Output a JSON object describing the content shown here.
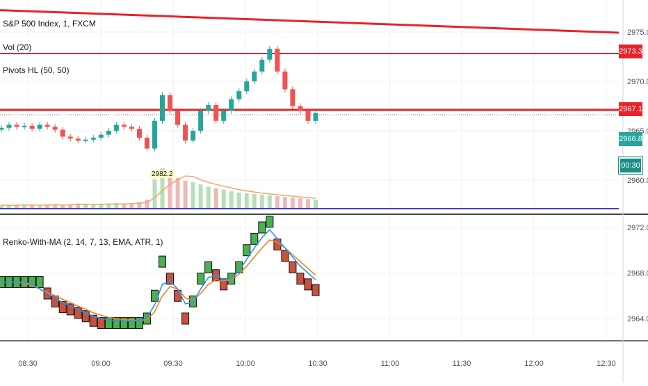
{
  "header": {
    "symbol_title": "S&P 500 Index, 1, FXCM",
    "volume_indicator": "Vol (20)",
    "pivots_indicator": "Pivots HL (50, 50)",
    "renko_indicator": "Renko-With-MA (2, 14, 7, 13, EMA, ATR, 1)",
    "volume_value_label": "2982.2"
  },
  "price_badges": {
    "pivot_high": "2973.3",
    "pivot_low": "2967.1",
    "last_price": "2966.8",
    "countdown": "00:30"
  },
  "colors": {
    "resistance": "#e8232a",
    "up": "#26a69a",
    "down": "#ef5350",
    "renko_up": "#4caf50",
    "renko_down": "#c8523f",
    "ema_fast": "#2196f3",
    "ema_slow": "#f5821f",
    "volume_baseline": "#3f3fd6",
    "countdown_bg": "#1e8f86"
  },
  "chart_data": [
    {
      "type": "line",
      "panel": "price",
      "y_ticks": [
        "2975.0",
        "2970.0",
        "2965.0",
        "2960.0"
      ],
      "x_ticks": [
        "08:30",
        "09:00",
        "09:30",
        "10:00",
        "10:30",
        "11:00",
        "11:30",
        "12:00",
        "12:30"
      ],
      "series": [
        {
          "name": "S&P 500 Index",
          "style": "candles",
          "values": [
            2965.3,
            2965.6,
            2965.4,
            2965.5,
            2965.2,
            2965.6,
            2965.4,
            2965.1,
            2964.4,
            2964.2,
            2964.0,
            2964.1,
            2964.3,
            2964.6,
            2965.0,
            2965.6,
            2965.4,
            2965.2,
            2964.3,
            2963.2,
            2966.0,
            2968.6,
            2967.0,
            2965.6,
            2964.0,
            2965.0,
            2967.0,
            2967.6,
            2966.0,
            2967.0,
            2968.2,
            2969.0,
            2970.0,
            2971.0,
            2972.2,
            2973.3,
            2971.0,
            2969.2,
            2967.5,
            2967.0,
            2966.0,
            2966.8
          ]
        }
      ],
      "horizontal_levels": [
        2973.3,
        2967.1
      ],
      "trendline": {
        "from": 2977.0,
        "to": 2975.0
      }
    },
    {
      "type": "bar",
      "panel": "volume",
      "values": [
        5,
        4,
        5,
        6,
        5,
        4,
        5,
        6,
        5,
        6,
        7,
        6,
        5,
        6,
        7,
        8,
        6,
        7,
        9,
        12,
        40,
        55,
        48,
        42,
        38,
        36,
        33,
        30,
        28,
        26,
        24,
        22,
        21,
        20,
        19,
        18,
        17,
        16,
        15,
        14,
        13,
        12
      ]
    },
    {
      "type": "line",
      "panel": "renko",
      "y_ticks": [
        "2972.0",
        "2968.0",
        "2964.0"
      ],
      "series": [
        {
          "name": "Renko bricks",
          "style": "bricks",
          "values": [
            2967.2,
            2967.2,
            2967.2,
            2967.2,
            2967.2,
            2967.2,
            2966.2,
            2965.5,
            2965.0,
            2964.8,
            2964.5,
            2964.2,
            2963.8,
            2963.6,
            2963.6,
            2963.6,
            2963.6,
            2963.6,
            2963.6,
            2964.0,
            2966.0,
            2969.0,
            2967.5,
            2966.0,
            2964.0,
            2965.5,
            2967.5,
            2968.5,
            2967.8,
            2967.0,
            2967.5,
            2968.5,
            2970.0,
            2971.0,
            2972.0,
            2972.5,
            2970.5,
            2969.5,
            2968.5,
            2967.5,
            2967.0,
            2966.5
          ]
        },
        {
          "name": "EMA fast",
          "style": "line",
          "values": [
            2967.2,
            2967.2,
            2967.2,
            2967.2,
            2967.0,
            2966.6,
            2966.2,
            2965.8,
            2965.4,
            2965.1,
            2964.8,
            2964.5,
            2964.2,
            2964.0,
            2963.9,
            2963.8,
            2963.8,
            2963.8,
            2963.8,
            2964.1,
            2965.2,
            2967.0,
            2967.3,
            2966.6,
            2965.3,
            2965.4,
            2966.6,
            2967.6,
            2967.8,
            2967.4,
            2967.5,
            2968.2,
            2969.2,
            2970.2,
            2971.1,
            2971.8,
            2971.0,
            2970.2,
            2969.4,
            2968.6,
            2968.0,
            2967.4
          ]
        },
        {
          "name": "EMA slow",
          "style": "line",
          "values": [
            2967.2,
            2967.2,
            2967.2,
            2967.1,
            2966.9,
            2966.6,
            2966.3,
            2966.0,
            2965.7,
            2965.4,
            2965.1,
            2964.8,
            2964.5,
            2964.3,
            2964.1,
            2964.0,
            2963.9,
            2963.9,
            2963.8,
            2963.9,
            2964.6,
            2966.0,
            2966.8,
            2966.6,
            2965.8,
            2965.6,
            2966.2,
            2967.0,
            2967.4,
            2967.3,
            2967.4,
            2967.9,
            2968.6,
            2969.4,
            2970.2,
            2970.9,
            2970.7,
            2970.2,
            2969.6,
            2969.0,
            2968.4,
            2967.8
          ]
        }
      ]
    }
  ]
}
